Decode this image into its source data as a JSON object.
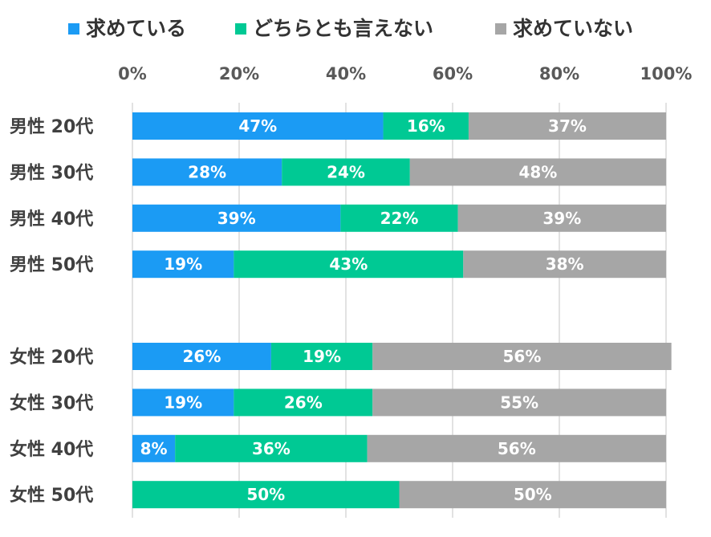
{
  "chart_data": {
    "type": "bar",
    "orientation": "horizontal",
    "stacked": "percent",
    "categories": [
      "男性 20代",
      "男性 30代",
      "男性 40代",
      "男性 50代",
      "",
      "女性 20代",
      "女性 30代",
      "女性 40代",
      "女性 50代"
    ],
    "series": [
      {
        "name": "求めている",
        "color": "#1b9bf4",
        "values": [
          47,
          28,
          39,
          19,
          null,
          26,
          19,
          8,
          0
        ],
        "labels": [
          "47%",
          "28%",
          "39%",
          "19%",
          "",
          "26%",
          "19%",
          "8%",
          ""
        ]
      },
      {
        "name": "どちらとも言えない",
        "color": "#00c994",
        "values": [
          16,
          24,
          22,
          43,
          null,
          19,
          26,
          36,
          50
        ],
        "labels": [
          "16%",
          "24%",
          "22%",
          "43%",
          "",
          "19%",
          "26%",
          "36%",
          "50%"
        ]
      },
      {
        "name": "求めていない",
        "color": "#a6a6a6",
        "values": [
          37,
          48,
          39,
          38,
          null,
          56,
          55,
          56,
          50
        ],
        "labels": [
          "37%",
          "48%",
          "39%",
          "38%",
          "",
          "56%",
          "55%",
          "56%",
          "50%"
        ]
      }
    ],
    "xlim": [
      0,
      100
    ],
    "ticks": [
      0,
      20,
      40,
      60,
      80,
      100
    ],
    "tick_labels": [
      "0%",
      "20%",
      "40%",
      "60%",
      "80%",
      "100%"
    ],
    "xlabel": "",
    "ylabel": "",
    "title": "",
    "grid": true,
    "legend_position": "top"
  }
}
